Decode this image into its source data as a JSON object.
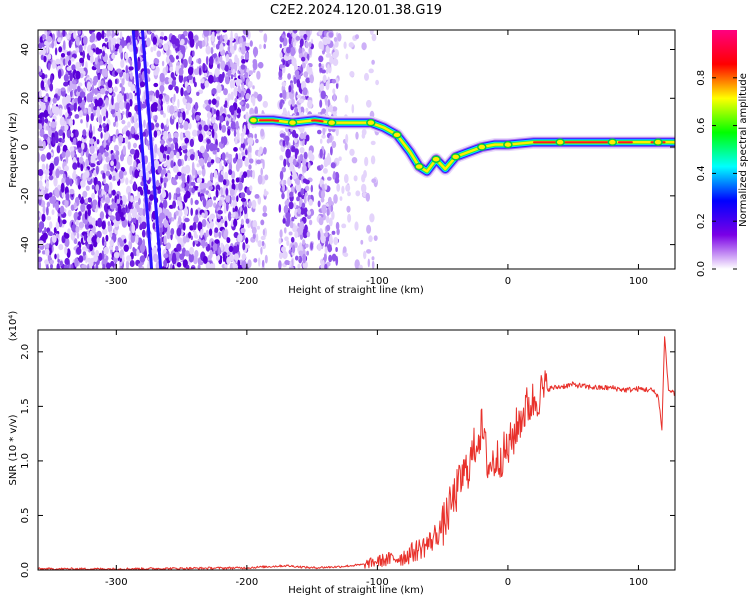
{
  "title": "C2E2.2024.120.01.38.G19",
  "chart_data": [
    {
      "type": "heatmap",
      "xlabel": "Height of straight line (km)",
      "ylabel": "Frequency (Hz)",
      "xlim": [
        -360,
        128
      ],
      "ylim": [
        -50,
        48
      ],
      "xticks": [
        -300,
        -200,
        -100,
        0,
        100
      ],
      "yticks": [
        -40,
        -20,
        0,
        20,
        40
      ],
      "colorbar": {
        "label": "Normalized spectral amplitude",
        "range": [
          0,
          1
        ],
        "ticks": [
          "0.0",
          "0.2",
          "0.4",
          "0.6",
          "0.8"
        ],
        "colors": [
          "#ffffff",
          "#7a00e6",
          "#0000ff",
          "#00ffff",
          "#00ff00",
          "#ffff00",
          "#ff0000",
          "#ff0080"
        ]
      },
      "ridge": [
        {
          "x": -195,
          "y": 11
        },
        {
          "x": -180,
          "y": 11
        },
        {
          "x": -165,
          "y": 10
        },
        {
          "x": -148,
          "y": 11
        },
        {
          "x": -135,
          "y": 10
        },
        {
          "x": -120,
          "y": 10
        },
        {
          "x": -105,
          "y": 10
        },
        {
          "x": -95,
          "y": 8
        },
        {
          "x": -85,
          "y": 5
        },
        {
          "x": -75,
          "y": -2
        },
        {
          "x": -68,
          "y": -8
        },
        {
          "x": -62,
          "y": -10
        },
        {
          "x": -55,
          "y": -5
        },
        {
          "x": -48,
          "y": -9
        },
        {
          "x": -40,
          "y": -4
        },
        {
          "x": -30,
          "y": -2
        },
        {
          "x": -20,
          "y": 0
        },
        {
          "x": -10,
          "y": 1
        },
        {
          "x": 0,
          "y": 1
        },
        {
          "x": 20,
          "y": 2
        },
        {
          "x": 40,
          "y": 2
        },
        {
          "x": 60,
          "y": 2
        },
        {
          "x": 80,
          "y": 2
        },
        {
          "x": 100,
          "y": 2
        },
        {
          "x": 115,
          "y": 2
        },
        {
          "x": 128,
          "y": 2
        }
      ],
      "artifact_lines": [
        {
          "x": [
            -287,
            -273
          ],
          "y": [
            48,
            -50
          ]
        },
        {
          "x": [
            -280,
            -266
          ],
          "y": [
            48,
            -50
          ]
        }
      ]
    },
    {
      "type": "line",
      "xlabel": "Height of straight line (km)",
      "ylabel": "SNR (10 * v/v)",
      "y_multiplier": "(x10⁴)",
      "xlim": [
        -360,
        128
      ],
      "ylim": [
        0,
        2.2
      ],
      "xticks": [
        -300,
        -200,
        -100,
        0,
        100
      ],
      "yticks": [
        "0.0",
        "0.5",
        "1.0",
        "1.5",
        "2.0"
      ],
      "color": "#e8312b",
      "x": [
        -360,
        -300,
        -200,
        -170,
        -150,
        -130,
        -110,
        -100,
        -90,
        -80,
        -70,
        -60,
        -50,
        -45,
        -40,
        -35,
        -30,
        -25,
        -20,
        -15,
        -10,
        -5,
        0,
        5,
        10,
        15,
        20,
        25,
        30,
        40,
        50,
        60,
        70,
        80,
        90,
        100,
        110,
        115,
        118,
        120,
        123,
        128
      ],
      "y": [
        0.01,
        0.01,
        0.02,
        0.04,
        0.02,
        0.03,
        0.05,
        0.08,
        0.1,
        0.12,
        0.18,
        0.25,
        0.4,
        0.55,
        0.7,
        0.85,
        0.95,
        1.15,
        1.3,
        0.95,
        1.0,
        1.05,
        1.1,
        1.25,
        1.4,
        1.5,
        1.55,
        1.62,
        1.66,
        1.68,
        1.7,
        1.68,
        1.67,
        1.67,
        1.65,
        1.66,
        1.65,
        1.6,
        1.3,
        2.15,
        1.65,
        1.62
      ]
    }
  ]
}
